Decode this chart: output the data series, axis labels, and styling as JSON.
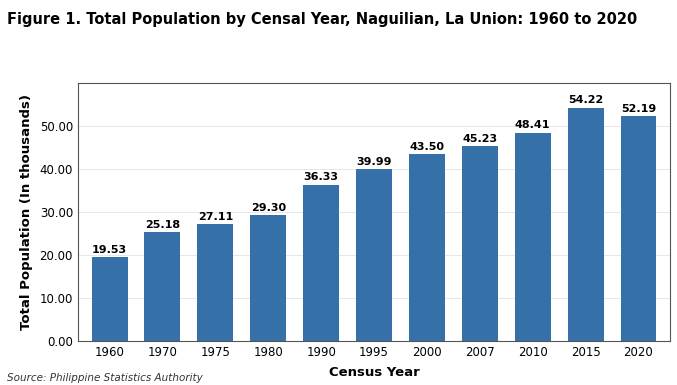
{
  "title": "Figure 1. Total Population by Censal Year, Naguilian, La Union: 1960 to 2020",
  "xlabel": "Census Year",
  "ylabel": "Total Population (In thousands)",
  "source": "Source: Philippine Statistics Authority",
  "categories": [
    "1960",
    "1970",
    "1975",
    "1980",
    "1990",
    "1995",
    "2000",
    "2007",
    "2010",
    "2015",
    "2020"
  ],
  "values": [
    19.53,
    25.18,
    27.11,
    29.3,
    36.33,
    39.99,
    43.5,
    45.23,
    48.41,
    54.22,
    52.19
  ],
  "bar_color": "#3670A8",
  "ylim": [
    0,
    60
  ],
  "yticks": [
    0.0,
    10.0,
    20.0,
    30.0,
    40.0,
    50.0
  ],
  "title_fontsize": 10.5,
  "axis_label_fontsize": 9.5,
  "tick_fontsize": 8.5,
  "bar_label_fontsize": 8,
  "source_fontsize": 7.5
}
